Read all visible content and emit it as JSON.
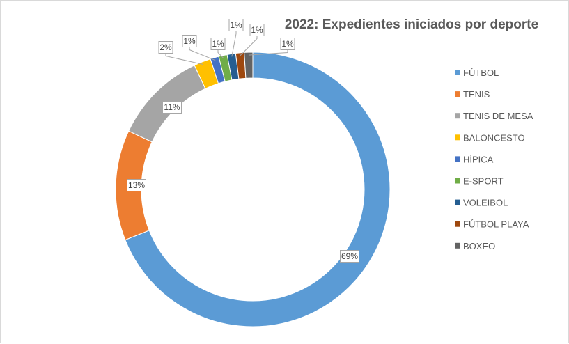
{
  "chart_data": {
    "type": "pie",
    "variant": "doughnut",
    "title": "2022: Expedientes iniciados por deporte",
    "legend_position": "right",
    "categories": [
      "FÚTBOL",
      "TENIS",
      "TENIS DE MESA",
      "BALONCESTO",
      "HÍPICA",
      "E-SPORT",
      "VOLEIBOL",
      "FÚTBOL PLAYA",
      "BOXEO"
    ],
    "values": [
      69,
      13,
      11,
      2,
      1,
      1,
      1,
      1,
      1
    ],
    "data_labels": [
      "69%",
      "13%",
      "11%",
      "2%",
      "1%",
      "1%",
      "1%",
      "1%",
      "1%"
    ],
    "colors": [
      "#5b9bd5",
      "#ed7d31",
      "#a5a5a5",
      "#ffc000",
      "#4472c4",
      "#70ad47",
      "#255e91",
      "#9e480e",
      "#636363"
    ]
  }
}
